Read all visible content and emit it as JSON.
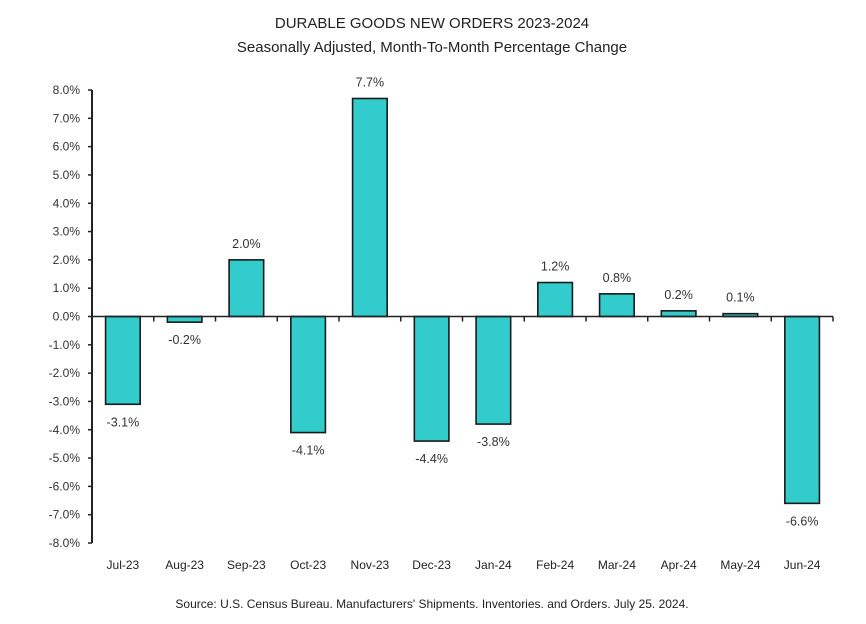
{
  "chart_data": {
    "type": "bar",
    "title": "DURABLE GOODS NEW ORDERS 2023-2024",
    "subtitle": "Seasonally Adjusted,  Month-To-Month Percentage Change",
    "xlabel": "",
    "ylabel": "",
    "categories": [
      "Jul-23",
      "Aug-23",
      "Sep-23",
      "Oct-23",
      "Nov-23",
      "Dec-23",
      "Jan-24",
      "Feb-24",
      "Mar-24",
      "Apr-24",
      "May-24",
      "Jun-24"
    ],
    "values": [
      -3.1,
      -0.2,
      2.0,
      -4.1,
      7.7,
      -4.4,
      -3.8,
      1.2,
      0.8,
      0.2,
      0.1,
      -6.6
    ],
    "data_labels": [
      "-3.1%",
      "-0.2%",
      "2.0%",
      "-4.1%",
      "7.7%",
      "-4.4%",
      "-3.8%",
      "1.2%",
      "0.8%",
      "0.2%",
      "0.1%",
      "-6.6%"
    ],
    "ylim": [
      -8.0,
      8.0
    ],
    "yticks": [
      8.0,
      7.0,
      6.0,
      5.0,
      4.0,
      3.0,
      2.0,
      1.0,
      0.0,
      -1.0,
      -2.0,
      -3.0,
      -4.0,
      -5.0,
      -6.0,
      -7.0,
      -8.0
    ],
    "ytick_labels": [
      "8.0%",
      "7.0%",
      "6.0%",
      "5.0%",
      "4.0%",
      "3.0%",
      "2.0%",
      "1.0%",
      "0.0%",
      "-1.0%",
      "-2.0%",
      "-3.0%",
      "-4.0%",
      "-5.0%",
      "-6.0%",
      "-7.0%",
      "-8.0%"
    ],
    "grid": false,
    "legend": "none",
    "bar_color": "#33CCCC",
    "bar_edge_color": "#1a1a1a",
    "source": "Source: U.S. Census Bureau. Manufacturers' Shipments. Inventories. and Orders. July 25. 2024."
  }
}
